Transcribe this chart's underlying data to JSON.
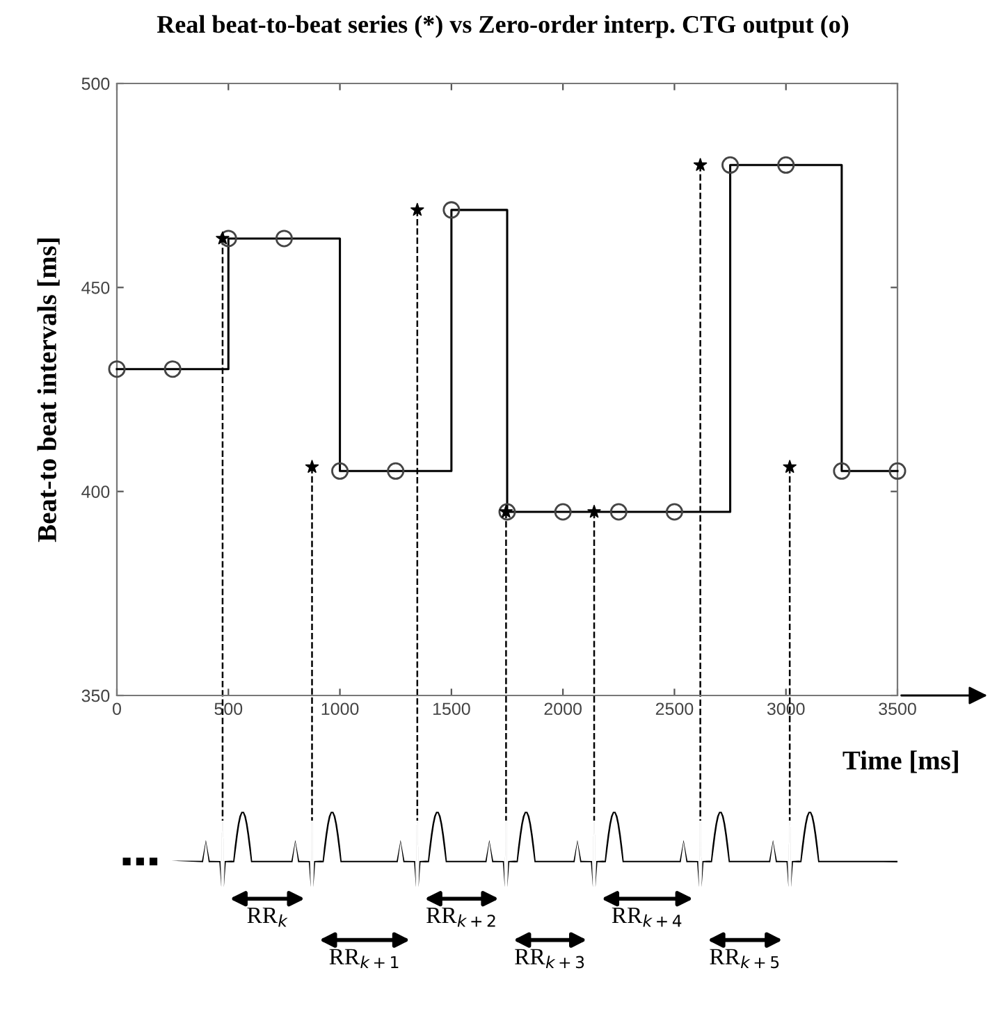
{
  "chart_data": {
    "type": "scatter",
    "title": "Real beat-to-beat series (*) vs Zero-order interp. CTG output (o)",
    "xlabel": "Time [ms]",
    "ylabel": "Beat-to beat intervals [ms]",
    "series": [
      {
        "color": "#000000",
        "marker": "star",
        "x": [
          474,
          875,
          1347,
          1745,
          2140,
          2616,
          3017
        ],
        "values": [
          462,
          406,
          469,
          395,
          395,
          480,
          406
        ]
      },
      {
        "type": "step",
        "color": "#000000",
        "marker": "circle",
        "line_style": "solid",
        "x": [
          0,
          250,
          500,
          750,
          1000,
          1250,
          1500,
          1750,
          2000,
          2250,
          2500,
          2750,
          3000,
          3250,
          3500
        ],
        "values": [
          430,
          430,
          462,
          462,
          405,
          405,
          469,
          395,
          395,
          395,
          395,
          480,
          480,
          405,
          405
        ]
      }
    ],
    "ref_lines": [
      {
        "axis": "x",
        "value": 474,
        "line_style": "dashed"
      },
      {
        "axis": "x",
        "value": 875,
        "line_style": "dashed"
      },
      {
        "axis": "x",
        "value": 1347,
        "line_style": "dashed"
      },
      {
        "axis": "x",
        "value": 1745,
        "line_style": "dashed"
      },
      {
        "axis": "x",
        "value": 2140,
        "line_style": "dashed"
      },
      {
        "axis": "x",
        "value": 2616,
        "line_style": "dashed"
      },
      {
        "axis": "x",
        "value": 3017,
        "line_style": "dashed"
      }
    ],
    "annotations": [
      "RR$_{k}$",
      "RR$_{k+1}$",
      "RR$_{k+2}$",
      "RR$_{k+3}$",
      "RR$_{k+4}$",
      "RR$_{k+5}$"
    ],
    "xlim": [
      0,
      3500
    ],
    "ylim": [
      350,
      500
    ],
    "xticks": [
      0,
      500,
      1000,
      1500,
      2000,
      2500,
      3000,
      3500
    ],
    "yticks": [
      350,
      400,
      450,
      500
    ],
    "grid": false,
    "legend": false
  }
}
